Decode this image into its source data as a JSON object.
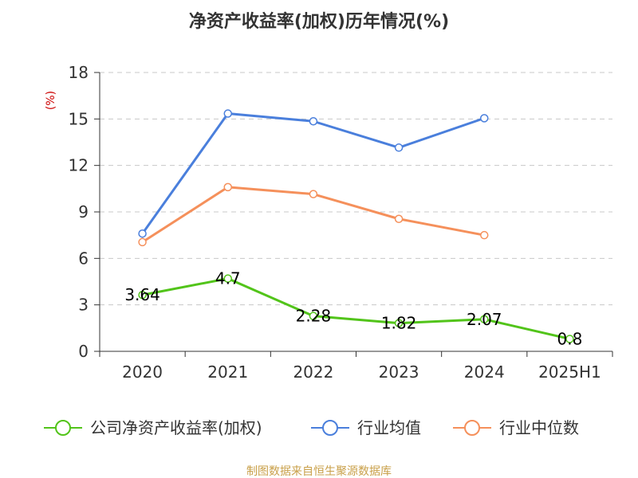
{
  "chart_data": {
    "type": "line",
    "title": "净资产收益率(加权)历年情况(%)",
    "ylabel": "(%)",
    "categories": [
      "2020",
      "2021",
      "2022",
      "2023",
      "2024",
      "2025H1"
    ],
    "ylim": [
      0,
      18
    ],
    "yticks": [
      "0",
      "3",
      "6",
      "9",
      "12",
      "15",
      "18"
    ],
    "grid": true,
    "legend_position": "bottom",
    "series": [
      {
        "name": "公司净资产收益率(加权)",
        "color": "#52c41a",
        "values": [
          3.64,
          4.7,
          2.28,
          1.82,
          2.07,
          0.8
        ],
        "labels": [
          "3.64",
          "4.7",
          "2.28",
          "1.82",
          "2.07",
          "0.8"
        ]
      },
      {
        "name": "行业均值",
        "color": "#4a7fdc",
        "values": [
          7.6,
          15.35,
          14.85,
          13.15,
          15.05,
          null
        ]
      },
      {
        "name": "行业中位数",
        "color": "#f5905b",
        "values": [
          7.05,
          10.6,
          10.15,
          8.55,
          7.5,
          null
        ]
      }
    ],
    "source": "制图数据来自恒生聚源数据库"
  }
}
